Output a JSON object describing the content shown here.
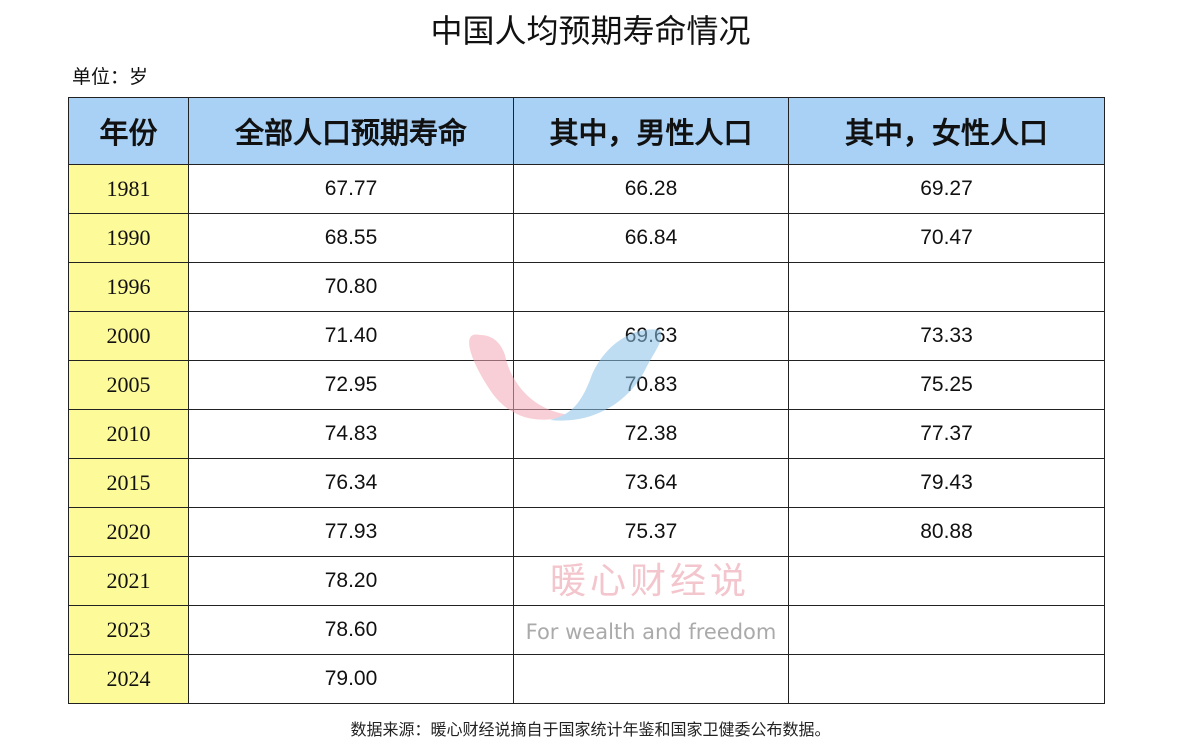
{
  "title": "中国人均预期寿命情况",
  "unit": "单位：岁",
  "headers": [
    "年份",
    "全部人口预期寿命",
    "其中，男性人口",
    "其中，女性人口"
  ],
  "rows": [
    [
      "1981",
      "67.77",
      "66.28",
      "69.27"
    ],
    [
      "1990",
      "68.55",
      "66.84",
      "70.47"
    ],
    [
      "1996",
      "70.80",
      "",
      ""
    ],
    [
      "2000",
      "71.40",
      "69.63",
      "73.33"
    ],
    [
      "2005",
      "72.95",
      "70.83",
      "75.25"
    ],
    [
      "2010",
      "74.83",
      "72.38",
      "77.37"
    ],
    [
      "2015",
      "76.34",
      "73.64",
      "79.43"
    ],
    [
      "2020",
      "77.93",
      "75.37",
      "80.88"
    ],
    [
      "2021",
      "78.20",
      "",
      ""
    ],
    [
      "2023",
      "78.60",
      "",
      ""
    ],
    [
      "2024",
      "79.00",
      "",
      ""
    ]
  ],
  "footer": "数据来源：暖心财经说摘自于国家统计年鉴和国家卫健委公布数据。",
  "watermark": {
    "cn": "暖心财经说",
    "en": "For wealth and freedom"
  },
  "colors": {
    "header_bg": "#a9d0f5",
    "year_bg": "#fdfa9a"
  }
}
